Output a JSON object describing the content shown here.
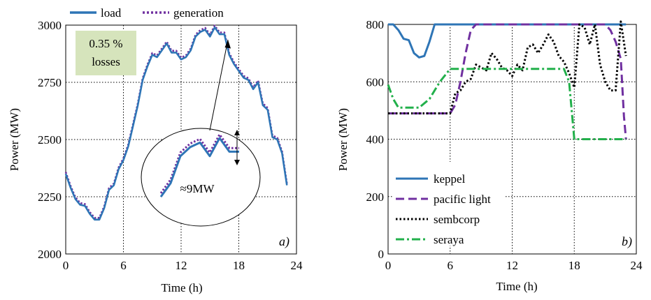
{
  "chart_data": [
    {
      "type": "line",
      "panel_label": "a)",
      "xlabel": "Time  (h)",
      "ylabel": "Power (MW)",
      "xlim": [
        0,
        24
      ],
      "ylim": [
        2000,
        3000
      ],
      "xticks": [
        0,
        6,
        12,
        18,
        24
      ],
      "yticks": [
        2000,
        2250,
        2500,
        2750,
        3000
      ],
      "grid": true,
      "legend": "top",
      "annotation_losses": "0.35 %\nlosses",
      "inset_label": "≈9MW",
      "colors": {
        "load": "#2e75b6",
        "generation": "#7030a0",
        "note_box": "#d6e4bc"
      },
      "series": [
        {
          "name": "load",
          "x": [
            0,
            0.5,
            1,
            1.5,
            2,
            2.5,
            3,
            3.5,
            4,
            4.5,
            5,
            5.5,
            6,
            6.5,
            7,
            7.5,
            8,
            8.5,
            9,
            9.5,
            10,
            10.5,
            11,
            11.5,
            12,
            12.5,
            13,
            13.5,
            14,
            14.5,
            15,
            15.5,
            16,
            16.5,
            17,
            17.5,
            18,
            18.5,
            19,
            19.5,
            20,
            20.5,
            21,
            21.5,
            22,
            22.5,
            23
          ],
          "values": [
            2350,
            2290,
            2240,
            2215,
            2210,
            2175,
            2150,
            2150,
            2200,
            2280,
            2300,
            2370,
            2410,
            2470,
            2560,
            2650,
            2760,
            2820,
            2870,
            2860,
            2890,
            2920,
            2880,
            2880,
            2850,
            2860,
            2890,
            2950,
            2970,
            2980,
            2950,
            2990,
            2960,
            2960,
            2870,
            2830,
            2800,
            2770,
            2760,
            2720,
            2750,
            2650,
            2630,
            2510,
            2500,
            2440,
            2300
          ]
        },
        {
          "name": "generation",
          "x": [
            0,
            0.5,
            1,
            1.5,
            2,
            2.5,
            3,
            3.5,
            4,
            4.5,
            5,
            5.5,
            6,
            6.5,
            7,
            7.5,
            8,
            8.5,
            9,
            9.5,
            10,
            10.5,
            11,
            11.5,
            12,
            12.5,
            13,
            13.5,
            14,
            14.5,
            15,
            15.5,
            16,
            16.5,
            17,
            17.5,
            18,
            18.5,
            19,
            19.5,
            20,
            20.5,
            21,
            21.5,
            22,
            22.5,
            23
          ],
          "values": [
            2358,
            2298,
            2248,
            2223,
            2218,
            2183,
            2158,
            2158,
            2208,
            2288,
            2308,
            2378,
            2418,
            2478,
            2568,
            2658,
            2768,
            2828,
            2878,
            2868,
            2898,
            2928,
            2888,
            2888,
            2858,
            2868,
            2898,
            2958,
            2978,
            2988,
            2958,
            2998,
            2968,
            2968,
            2878,
            2838,
            2808,
            2778,
            2768,
            2728,
            2758,
            2658,
            2638,
            2518,
            2508,
            2448,
            2308
          ]
        }
      ]
    },
    {
      "type": "line",
      "panel_label": "b)",
      "xlabel": "Time  (h)",
      "ylabel": "Power (MW)",
      "xlim": [
        0,
        24
      ],
      "ylim": [
        0,
        800
      ],
      "xticks": [
        0,
        6,
        12,
        18,
        24
      ],
      "yticks": [
        0,
        200,
        400,
        600,
        800
      ],
      "grid": true,
      "legend": "bottom-left",
      "colors": {
        "keppel": "#2e75b6",
        "pacific light": "#7030a0",
        "sembcorp": "#000000",
        "seraya": "#22b04b"
      },
      "series": [
        {
          "name": "keppel",
          "x": [
            0,
            0.5,
            1,
            1.5,
            2,
            2.5,
            3,
            3.5,
            4,
            4.5,
            5,
            6,
            12,
            18,
            23
          ],
          "values": [
            800,
            800,
            780,
            750,
            745,
            700,
            685,
            690,
            740,
            800,
            800,
            800,
            800,
            800,
            800
          ]
        },
        {
          "name": "pacific  light",
          "x": [
            0,
            3,
            6,
            6.5,
            7,
            7.5,
            8,
            8.5,
            12,
            18,
            21,
            21.5,
            22,
            22.5,
            22.8,
            23
          ],
          "values": [
            490,
            490,
            490,
            520,
            600,
            700,
            780,
            800,
            800,
            800,
            800,
            780,
            740,
            680,
            480,
            400
          ]
        },
        {
          "name": "sembcorp",
          "x": [
            0,
            3,
            6,
            6.5,
            7,
            7.5,
            8,
            8.5,
            9,
            9.5,
            10,
            10.5,
            11,
            11.5,
            12,
            12.5,
            13,
            13.5,
            14,
            14.5,
            15,
            15.5,
            16,
            16.5,
            17,
            17.5,
            18,
            18.5,
            19,
            19.5,
            20,
            20.5,
            21,
            21.5,
            22,
            22.5,
            23
          ],
          "values": [
            490,
            490,
            490,
            560,
            570,
            600,
            610,
            660,
            650,
            640,
            700,
            680,
            650,
            640,
            620,
            660,
            640,
            720,
            730,
            700,
            730,
            765,
            740,
            690,
            670,
            630,
            580,
            800,
            790,
            730,
            800,
            660,
            600,
            570,
            570,
            810,
            690
          ]
        },
        {
          "name": "seraya",
          "x": [
            0,
            0.5,
            1,
            2,
            3,
            4,
            5,
            6,
            12,
            17,
            17.5,
            18,
            18.5,
            19,
            20,
            21,
            22,
            23
          ],
          "values": [
            590,
            540,
            510,
            510,
            510,
            540,
            600,
            645,
            645,
            645,
            600,
            400,
            400,
            400,
            400,
            400,
            400,
            400
          ]
        }
      ]
    }
  ]
}
